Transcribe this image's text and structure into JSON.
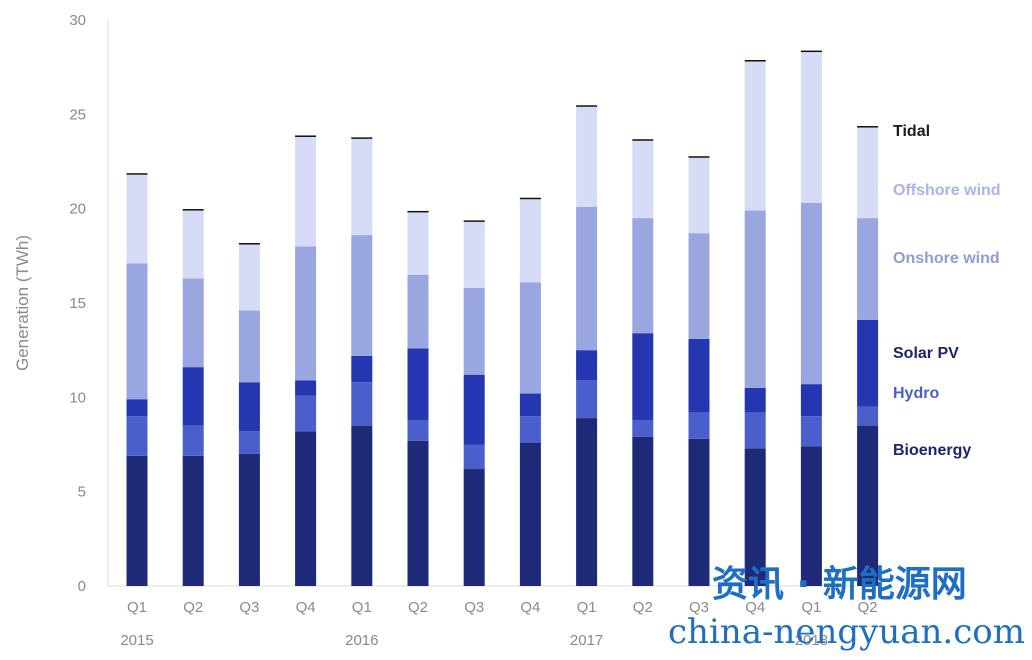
{
  "chart_data": {
    "type": "bar",
    "stacked": true,
    "ylabel": "Generation (TWh)",
    "ylim": [
      0,
      30
    ],
    "yticks": [
      0,
      5,
      10,
      15,
      20,
      25,
      30
    ],
    "grid": false,
    "legend_placement": "right",
    "categories": [
      "Q1",
      "Q2",
      "Q3",
      "Q4",
      "Q1",
      "Q2",
      "Q3",
      "Q4",
      "Q1",
      "Q2",
      "Q3",
      "Q4",
      "Q1",
      "Q2"
    ],
    "years": [
      {
        "label": "2015",
        "index": 0
      },
      {
        "label": "2016",
        "index": 4
      },
      {
        "label": "2017",
        "index": 8
      },
      {
        "label": "2018",
        "index": 12
      }
    ],
    "series": [
      {
        "name": "Bioenergy",
        "color": "#1e2a78",
        "values": [
          6.9,
          6.9,
          7.0,
          8.2,
          8.5,
          7.7,
          6.2,
          7.6,
          8.9,
          7.9,
          7.8,
          7.3,
          7.4,
          8.5
        ]
      },
      {
        "name": "Hydro",
        "color": "#4a5fcc",
        "values": [
          2.1,
          1.6,
          1.2,
          1.9,
          2.3,
          1.1,
          1.3,
          1.4,
          2.0,
          0.9,
          1.4,
          1.9,
          1.6,
          1.0
        ]
      },
      {
        "name": "Solar PV",
        "color": "#2537b0",
        "values": [
          0.9,
          3.1,
          2.6,
          0.8,
          1.4,
          3.8,
          3.7,
          1.2,
          1.6,
          4.6,
          3.9,
          1.3,
          1.7,
          4.6
        ]
      },
      {
        "name": "Onshore wind",
        "color": "#9aa6e0",
        "values": [
          7.2,
          4.7,
          3.8,
          7.1,
          6.4,
          3.9,
          4.6,
          5.9,
          7.6,
          6.1,
          5.6,
          9.4,
          9.6,
          5.4
        ]
      },
      {
        "name": "Offshore wind",
        "color": "#d6dcf5",
        "values": [
          4.7,
          3.6,
          3.5,
          5.8,
          5.1,
          3.3,
          3.5,
          4.4,
          5.3,
          4.1,
          4.0,
          7.9,
          8.0,
          4.8
        ]
      },
      {
        "name": "Tidal",
        "color": "#111111",
        "values": [
          0,
          0,
          0,
          0,
          0,
          0,
          0,
          0,
          0,
          0,
          0,
          0,
          0,
          0
        ]
      }
    ],
    "legend": [
      {
        "name": "Tidal",
        "color": "#1c1c1c"
      },
      {
        "name": "Offshore wind",
        "color": "#aab4e6"
      },
      {
        "name": "Onshore wind",
        "color": "#8f9cd8"
      },
      {
        "name": "Solar PV",
        "color": "#1c2470"
      },
      {
        "name": "Hydro",
        "color": "#4a5fcc"
      },
      {
        "name": "Bioenergy",
        "color": "#1c2470"
      }
    ]
  },
  "watermark": {
    "chinese": "资讯 · 新能源网",
    "domain": "china-nengyuan.com"
  }
}
